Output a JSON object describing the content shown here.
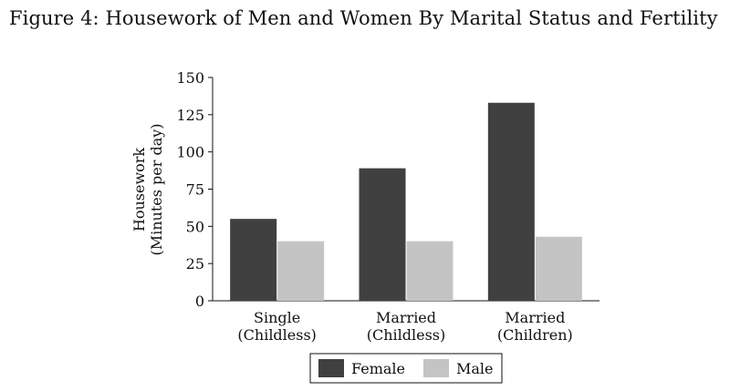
{
  "figure_title": "Figure 4: Housework of Men and Women By Marital Status and Fertility",
  "chart_data": {
    "type": "bar",
    "categories": [
      [
        "Single",
        "(Childless)"
      ],
      [
        "Married",
        "(Childless)"
      ],
      [
        "Married",
        "(Children)"
      ]
    ],
    "series": [
      {
        "name": "Female",
        "values": [
          55,
          89,
          133
        ],
        "color": "#404040"
      },
      {
        "name": "Male",
        "values": [
          40,
          40,
          43
        ],
        "color": "#c4c4c4"
      }
    ],
    "ylabel": [
      "Housework",
      "(Minutes per day)"
    ],
    "ylim": [
      0,
      150
    ],
    "yticks": [
      0,
      25,
      50,
      75,
      100,
      125,
      150
    ],
    "grid": false,
    "legend_position": "bottom"
  }
}
